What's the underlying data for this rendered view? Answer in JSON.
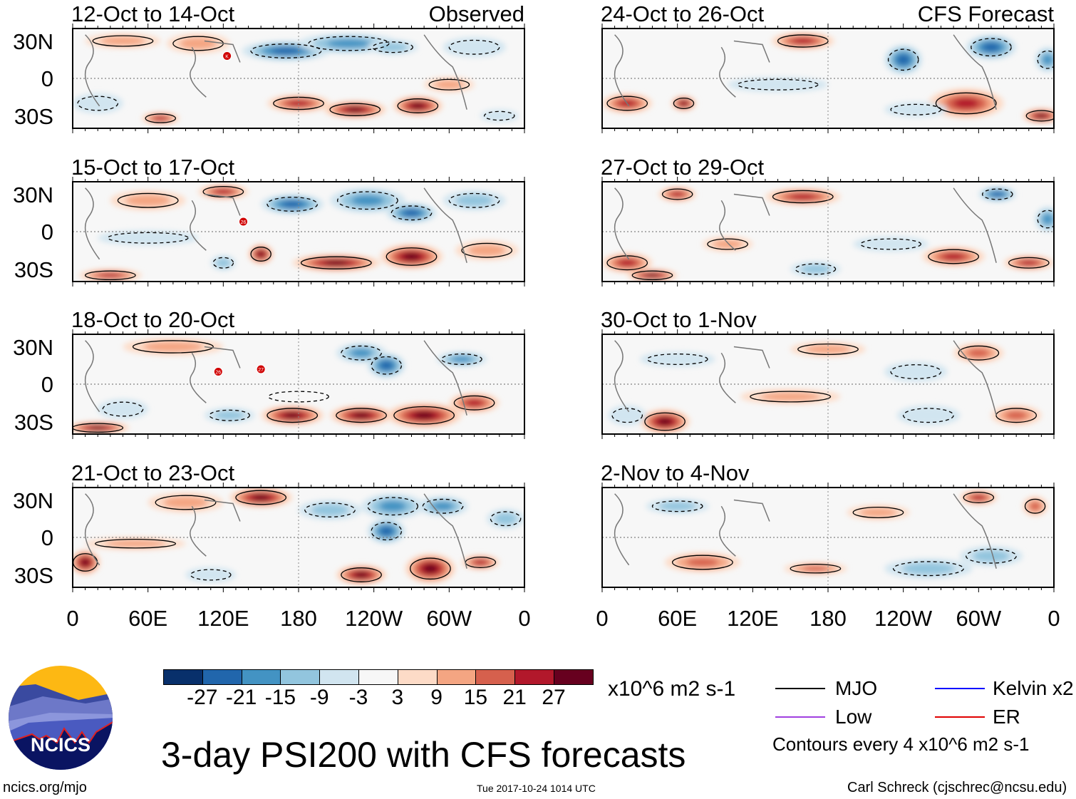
{
  "labels": {
    "observed": "Observed",
    "forecast": "CFS Forecast"
  },
  "lat_ticks": [
    "30N",
    "0",
    "30S"
  ],
  "lon_ticks": [
    "0",
    "60E",
    "120E",
    "180",
    "120W",
    "60W",
    "0"
  ],
  "panels": [
    {
      "id": "obs-1",
      "title": "12-Oct to 14-Oct",
      "col": 0,
      "row": 0,
      "storms": [
        {
          "label": "K",
          "lon": 123,
          "lat": 18
        }
      ],
      "anomalies": [
        [
          40,
          30,
          30,
          6,
          12
        ],
        [
          100,
          28,
          25,
          8,
          9
        ],
        [
          170,
          22,
          35,
          8,
          -27
        ],
        [
          220,
          28,
          40,
          8,
          -21
        ],
        [
          255,
          25,
          20,
          6,
          -15
        ],
        [
          320,
          25,
          25,
          8,
          -9
        ],
        [
          180,
          -20,
          25,
          7,
          21
        ],
        [
          225,
          -25,
          25,
          7,
          27
        ],
        [
          275,
          -22,
          20,
          8,
          27
        ],
        [
          20,
          -20,
          20,
          8,
          -9
        ],
        [
          70,
          -32,
          15,
          5,
          21
        ],
        [
          300,
          -5,
          20,
          6,
          9
        ],
        [
          340,
          -30,
          15,
          5,
          -9
        ]
      ]
    },
    {
      "id": "obs-2",
      "title": "15-Oct to 17-Oct",
      "col": 0,
      "row": 1,
      "storms": [
        {
          "label": "26",
          "lon": 136,
          "lat": 8
        }
      ],
      "anomalies": [
        [
          120,
          32,
          20,
          6,
          21
        ],
        [
          60,
          25,
          30,
          8,
          9
        ],
        [
          175,
          22,
          25,
          8,
          -27
        ],
        [
          235,
          25,
          30,
          10,
          -21
        ],
        [
          270,
          15,
          20,
          8,
          -27
        ],
        [
          320,
          25,
          25,
          8,
          -15
        ],
        [
          150,
          -18,
          10,
          8,
          27
        ],
        [
          210,
          -25,
          35,
          7,
          27
        ],
        [
          270,
          -20,
          25,
          10,
          27
        ],
        [
          30,
          -35,
          25,
          5,
          21
        ],
        [
          330,
          -15,
          25,
          8,
          9
        ],
        [
          120,
          -25,
          10,
          6,
          -15
        ],
        [
          60,
          -5,
          40,
          6,
          -9
        ]
      ]
    },
    {
      "id": "obs-3",
      "title": "18-Oct to 20-Oct",
      "col": 0,
      "row": 2,
      "storms": [
        {
          "label": "26",
          "lon": 116,
          "lat": 10
        },
        {
          "label": "27",
          "lon": 150,
          "lat": 12
        }
      ],
      "anomalies": [
        [
          80,
          30,
          40,
          7,
          9
        ],
        [
          230,
          25,
          20,
          8,
          -21
        ],
        [
          250,
          15,
          15,
          10,
          -27
        ],
        [
          310,
          20,
          20,
          6,
          -21
        ],
        [
          180,
          -10,
          30,
          6,
          -3
        ],
        [
          175,
          -25,
          25,
          8,
          27
        ],
        [
          230,
          -25,
          25,
          8,
          27
        ],
        [
          280,
          -25,
          30,
          10,
          27
        ],
        [
          320,
          -15,
          20,
          8,
          21
        ],
        [
          40,
          -20,
          20,
          8,
          -9
        ],
        [
          20,
          -35,
          25,
          5,
          27
        ],
        [
          125,
          -25,
          20,
          6,
          -15
        ]
      ]
    },
    {
      "id": "obs-4",
      "title": "21-Oct to 23-Oct",
      "col": 0,
      "row": 3,
      "storms": [],
      "anomalies": [
        [
          150,
          32,
          25,
          8,
          27
        ],
        [
          90,
          28,
          30,
          8,
          9
        ],
        [
          205,
          22,
          25,
          8,
          -15
        ],
        [
          255,
          25,
          25,
          10,
          -21
        ],
        [
          250,
          5,
          15,
          10,
          -27
        ],
        [
          295,
          25,
          20,
          8,
          -21
        ],
        [
          345,
          15,
          15,
          8,
          -15
        ],
        [
          10,
          -20,
          12,
          10,
          27
        ],
        [
          230,
          -30,
          20,
          8,
          27
        ],
        [
          285,
          -25,
          20,
          12,
          27
        ],
        [
          325,
          -20,
          15,
          6,
          21
        ],
        [
          110,
          -30,
          20,
          6,
          -9
        ],
        [
          50,
          -5,
          40,
          5,
          9
        ]
      ]
    },
    {
      "id": "fcst-1",
      "title": "24-Oct to 26-Oct",
      "col": 1,
      "row": 0,
      "storms": [],
      "anomalies": [
        [
          160,
          30,
          25,
          7,
          21
        ],
        [
          240,
          15,
          15,
          12,
          -27
        ],
        [
          310,
          25,
          20,
          10,
          -27
        ],
        [
          355,
          15,
          10,
          10,
          -21
        ],
        [
          20,
          -20,
          20,
          8,
          21
        ],
        [
          65,
          -20,
          10,
          6,
          27
        ],
        [
          290,
          -20,
          30,
          12,
          21
        ],
        [
          250,
          -25,
          25,
          6,
          -9
        ],
        [
          140,
          -5,
          40,
          6,
          -9
        ],
        [
          350,
          -30,
          15,
          6,
          27
        ]
      ]
    },
    {
      "id": "fcst-2",
      "title": "27-Oct to 29-Oct",
      "col": 1,
      "row": 1,
      "storms": [],
      "anomalies": [
        [
          60,
          30,
          15,
          6,
          21
        ],
        [
          160,
          28,
          30,
          7,
          21
        ],
        [
          315,
          30,
          15,
          6,
          -27
        ],
        [
          355,
          10,
          10,
          10,
          -21
        ],
        [
          20,
          -25,
          20,
          8,
          21
        ],
        [
          40,
          -35,
          20,
          5,
          27
        ],
        [
          170,
          -30,
          20,
          6,
          -15
        ],
        [
          280,
          -20,
          25,
          8,
          21
        ],
        [
          340,
          -25,
          20,
          6,
          21
        ],
        [
          230,
          -10,
          30,
          6,
          -9
        ],
        [
          100,
          -10,
          20,
          6,
          9
        ]
      ]
    },
    {
      "id": "fcst-3",
      "title": "30-Oct to 1-Nov",
      "col": 1,
      "row": 2,
      "storms": [],
      "anomalies": [
        [
          180,
          28,
          30,
          6,
          9
        ],
        [
          300,
          25,
          20,
          8,
          15
        ],
        [
          60,
          20,
          30,
          6,
          -9
        ],
        [
          250,
          10,
          25,
          8,
          -9
        ],
        [
          50,
          -30,
          20,
          10,
          27
        ],
        [
          20,
          -25,
          15,
          8,
          -9
        ],
        [
          260,
          -25,
          25,
          8,
          -9
        ],
        [
          330,
          -25,
          20,
          8,
          15
        ],
        [
          150,
          -10,
          40,
          6,
          9
        ]
      ]
    },
    {
      "id": "fcst-4",
      "title": "2-Nov to 4-Nov",
      "col": 1,
      "row": 3,
      "storms": [],
      "anomalies": [
        [
          300,
          32,
          15,
          6,
          21
        ],
        [
          60,
          25,
          25,
          6,
          -15
        ],
        [
          220,
          20,
          25,
          6,
          9
        ],
        [
          80,
          -20,
          30,
          8,
          15
        ],
        [
          170,
          -25,
          25,
          5,
          15
        ],
        [
          260,
          -25,
          35,
          8,
          -15
        ],
        [
          310,
          -15,
          25,
          8,
          -15
        ],
        [
          345,
          25,
          10,
          8,
          15
        ]
      ]
    }
  ],
  "colorbar": {
    "colors": [
      "#08306b",
      "#2166ac",
      "#4393c3",
      "#92c5de",
      "#d1e5f0",
      "#f7f7f7",
      "#fddbc7",
      "#f4a582",
      "#d6604d",
      "#b2182b",
      "#67001f"
    ],
    "tick_labels": [
      "-27",
      "-21",
      "-15",
      "-9",
      "-3",
      "3",
      "9",
      "15",
      "21",
      "27"
    ],
    "units": "x10^6 m2 s-1"
  },
  "legend": {
    "items": [
      {
        "label": "MJO",
        "color": "#000000"
      },
      {
        "label": "Kelvin x2",
        "color": "#0000ff"
      },
      {
        "label": "Low",
        "color": "#a040e0"
      },
      {
        "label": "ER",
        "color": "#e00000"
      }
    ],
    "contours_note": "Contours every 4 x10^6 m2 s-1"
  },
  "main_title": "3-day PSI200 with CFS forecasts",
  "logo": {
    "text": "NCICS"
  },
  "footer": {
    "url": "ncics.org/mjo",
    "timestamp": "Tue 2017-10-24 1014 UTC",
    "author": "Carl Schreck (cjschrec@ncsu.edu)"
  }
}
